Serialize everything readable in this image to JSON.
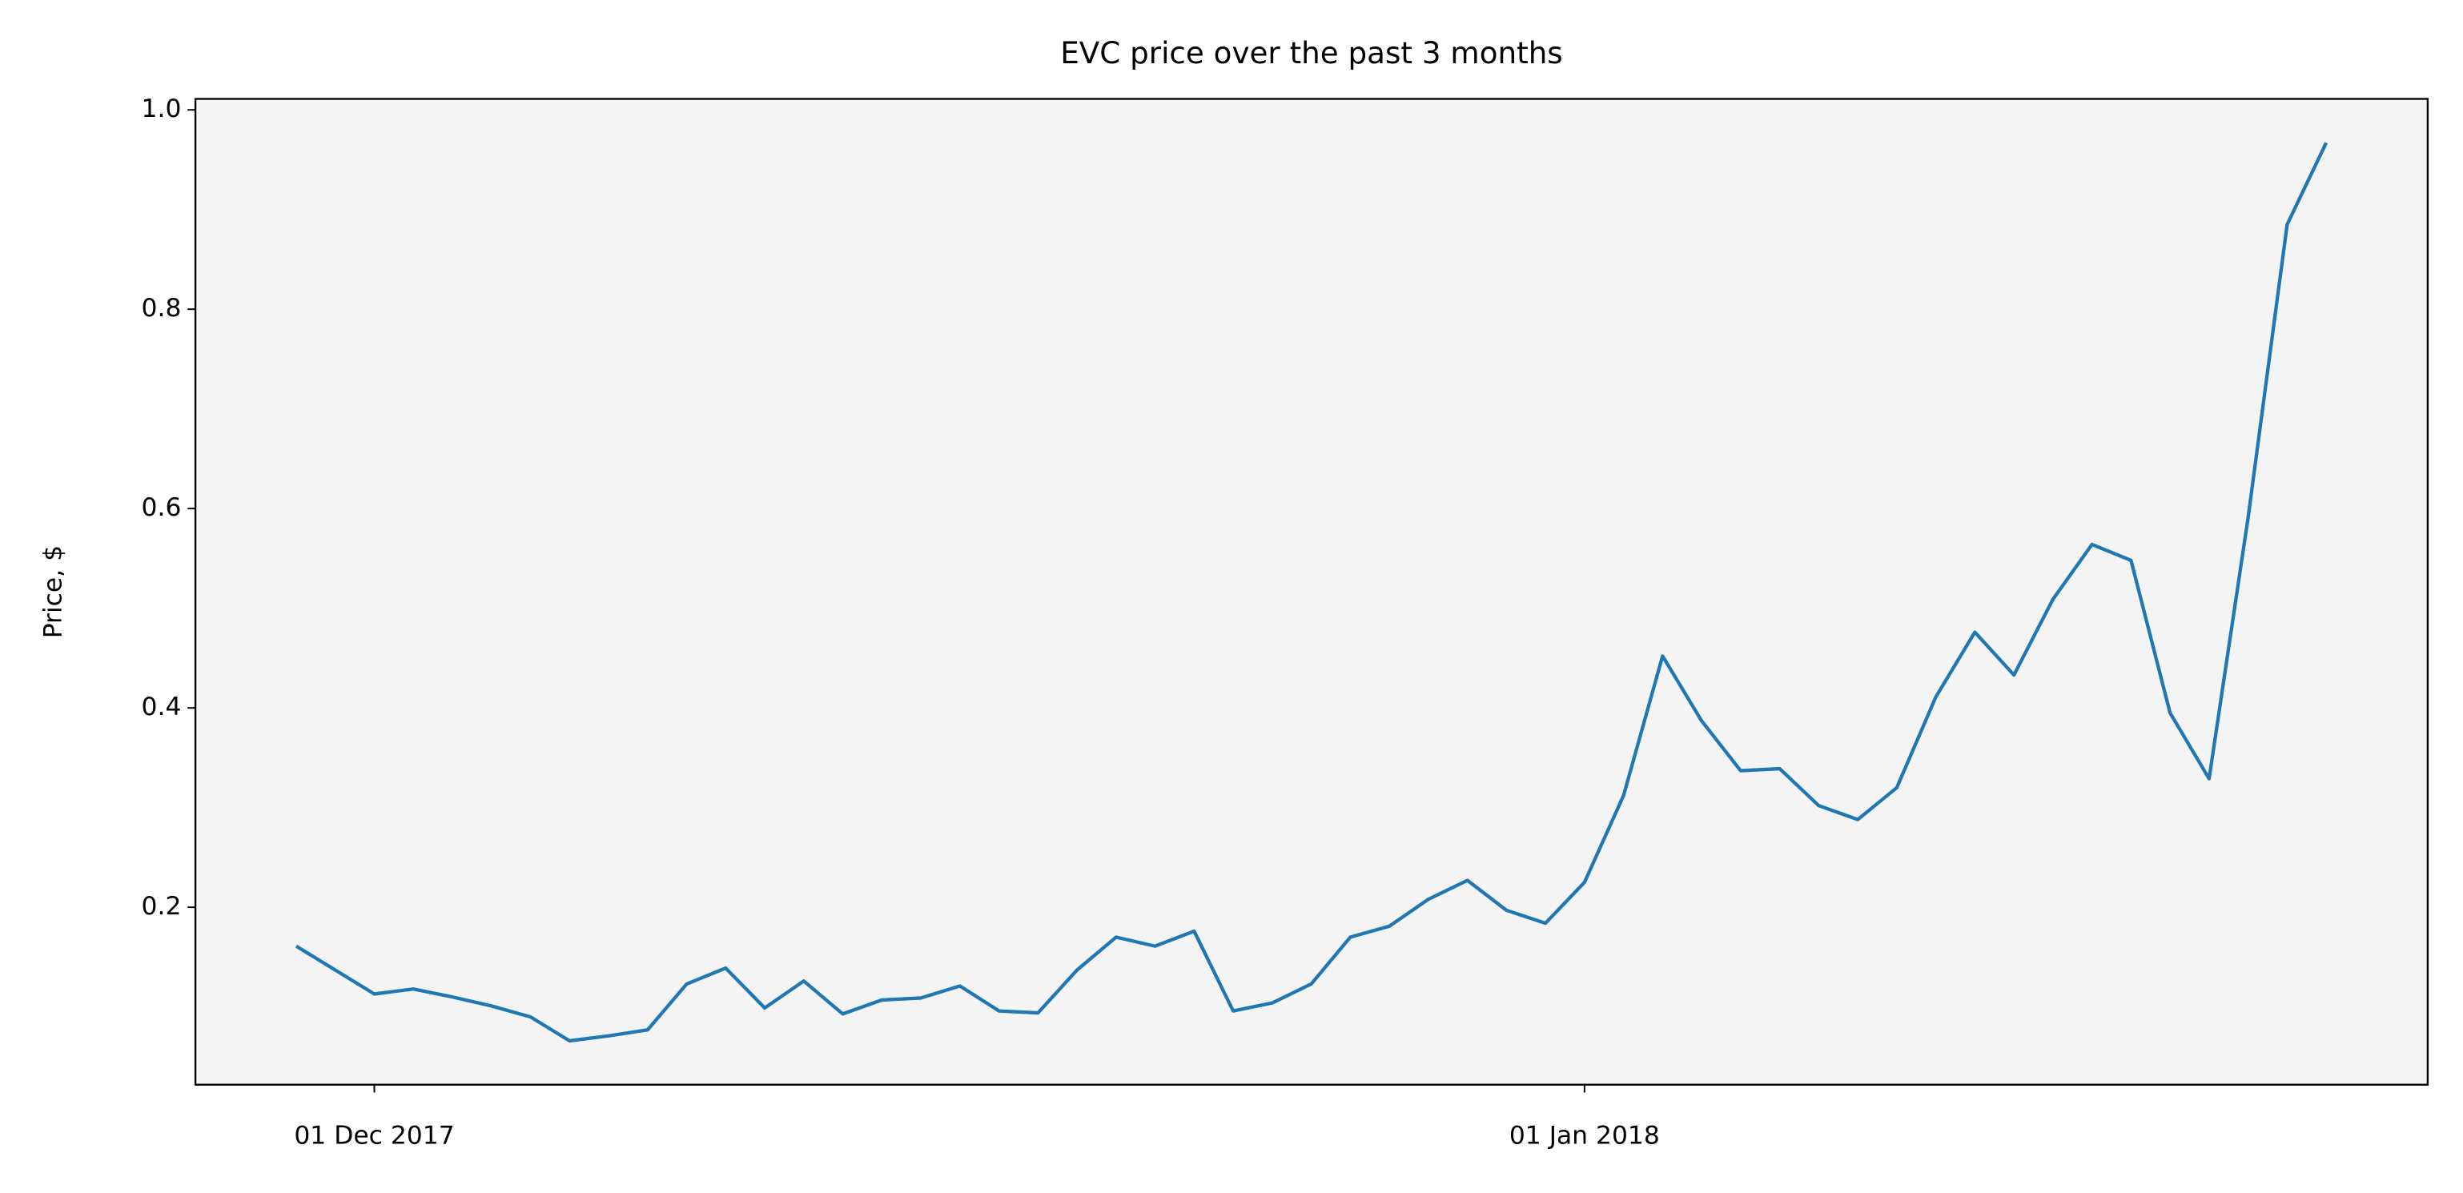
{
  "chart_data": {
    "type": "line",
    "title": "EVC price over the past 3 months",
    "y_label": "Price, $",
    "x": [
      "2017-11-29",
      "2017-11-30",
      "2017-12-01",
      "2017-12-02",
      "2017-12-03",
      "2017-12-04",
      "2017-12-05",
      "2017-12-06",
      "2017-12-07",
      "2017-12-08",
      "2017-12-09",
      "2017-12-10",
      "2017-12-11",
      "2017-12-12",
      "2017-12-13",
      "2017-12-14",
      "2017-12-15",
      "2017-12-16",
      "2017-12-17",
      "2017-12-18",
      "2017-12-19",
      "2017-12-20",
      "2017-12-21",
      "2017-12-22",
      "2017-12-23",
      "2017-12-24",
      "2017-12-25",
      "2017-12-26",
      "2017-12-27",
      "2017-12-28",
      "2017-12-29",
      "2017-12-30",
      "2017-12-31",
      "2018-01-01",
      "2018-01-02",
      "2018-01-03",
      "2018-01-04",
      "2018-01-05",
      "2018-01-06",
      "2018-01-07",
      "2018-01-08",
      "2018-01-09",
      "2018-01-10",
      "2018-01-11",
      "2018-01-12",
      "2018-01-13",
      "2018-01-14",
      "2018-01-15",
      "2018-01-16",
      "2018-01-17",
      "2018-01-18",
      "2018-01-19",
      "2018-01-20"
    ],
    "series": [
      {
        "name": "EVC",
        "color": "#1f77b4",
        "values": [
          0.161,
          0.137,
          0.113,
          0.118,
          0.11,
          0.101,
          0.09,
          0.066,
          0.071,
          0.077,
          0.123,
          0.139,
          0.099,
          0.126,
          0.093,
          0.107,
          0.109,
          0.121,
          0.096,
          0.094,
          0.137,
          0.17,
          0.161,
          0.176,
          0.096,
          0.104,
          0.123,
          0.17,
          0.181,
          0.208,
          0.227,
          0.197,
          0.184,
          0.225,
          0.312,
          0.452,
          0.387,
          0.337,
          0.339,
          0.302,
          0.288,
          0.32,
          0.411,
          0.476,
          0.433,
          0.509,
          0.564,
          0.548,
          0.395,
          0.329,
          0.591,
          0.885,
          0.967
        ]
      }
    ],
    "xlim": [
      "2017-11-26T10:00",
      "2018-01-22T14:24"
    ],
    "xticks": [
      {
        "value": "2017-12-01",
        "label": "01 Dec 2017"
      },
      {
        "value": "2018-01-01",
        "label": "01 Jan 2018"
      }
    ],
    "ylim": [
      0.022,
      1.011
    ],
    "yticks": [
      0.2,
      0.4,
      0.6,
      0.8,
      {
        "value": 1.0,
        "label": "1.0"
      }
    ],
    "background": "#f4f4f4"
  }
}
